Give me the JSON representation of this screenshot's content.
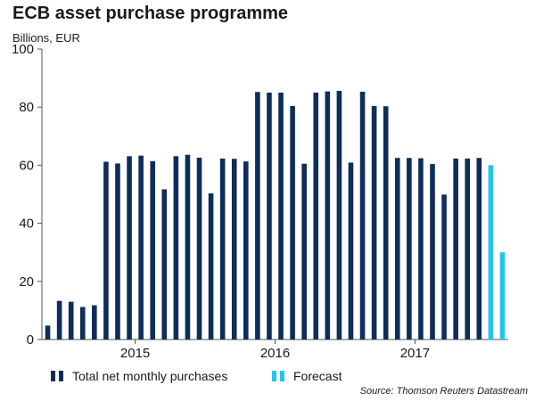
{
  "chart_data": {
    "type": "bar",
    "title": "ECB asset purchase programme",
    "subtitle": "Billions, EUR",
    "ylim": [
      0,
      100
    ],
    "yticks": [
      0,
      20,
      40,
      60,
      80,
      100
    ],
    "xticks": [
      {
        "label": "2015",
        "index": 8
      },
      {
        "label": "2016",
        "index": 20
      },
      {
        "label": "2017",
        "index": 32
      }
    ],
    "series": [
      {
        "name": "Total net monthly purchases",
        "color": "#0e2d5a",
        "values": [
          4.8,
          13.3,
          13.0,
          11.2,
          11.8,
          61.2,
          60.6,
          63.1,
          63.3,
          61.4,
          51.7,
          63.1,
          63.6,
          62.6,
          50.3,
          62.3,
          62.2,
          61.3,
          85.2,
          85.0,
          85.0,
          80.4,
          60.5,
          85.0,
          85.4,
          85.6,
          60.9,
          85.3,
          80.4,
          80.3,
          62.5,
          62.5,
          62.4,
          60.4,
          49.9,
          62.3,
          62.3,
          62.5,
          null,
          null
        ]
      },
      {
        "name": "Forecast",
        "color": "#22c4ee",
        "values": [
          null,
          null,
          null,
          null,
          null,
          null,
          null,
          null,
          null,
          null,
          null,
          null,
          null,
          null,
          null,
          null,
          null,
          null,
          null,
          null,
          null,
          null,
          null,
          null,
          null,
          null,
          null,
          null,
          null,
          null,
          null,
          null,
          null,
          null,
          null,
          null,
          null,
          null,
          60,
          30
        ]
      }
    ],
    "source": "Source: Thomson Reuters Datastream"
  }
}
